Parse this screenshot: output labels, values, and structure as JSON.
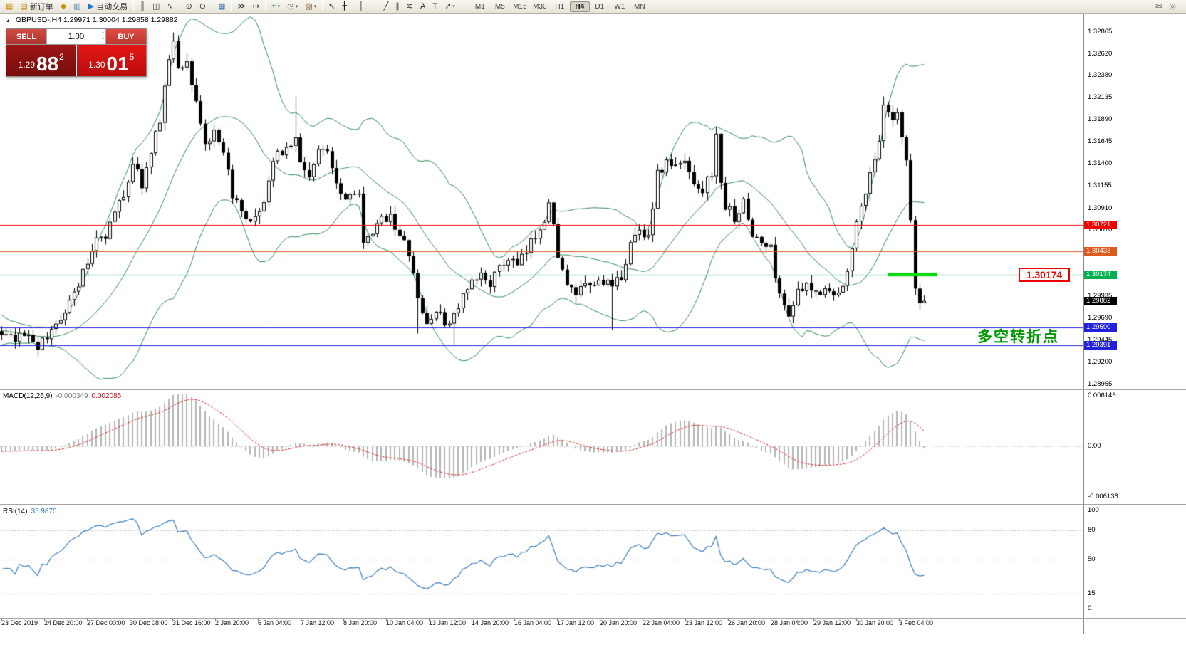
{
  "toolbar": {
    "buttons": [
      {
        "cls": "tb-btn",
        "name": "new-chart-button",
        "inter": "true",
        "glyph": "▦",
        "style": "color:#c79100"
      },
      {
        "cls": "tb-btn",
        "name": "new-order-button",
        "inter": "true",
        "glyph": "▤",
        "style": "color:#b8860b",
        "label": "新订单"
      },
      {
        "cls": "tb-btn",
        "name": "profiles-button",
        "inter": "true",
        "glyph": "◆",
        "style": "color:#c79100"
      },
      {
        "cls": "tb-btn",
        "name": "charts-button",
        "inter": "true",
        "glyph": "▥",
        "style": "color:#3b6fb5"
      },
      {
        "cls": "tb-btn",
        "name": "auto-trading-button",
        "inter": "true",
        "glyph": "▶",
        "style": "color:#1976d2",
        "label": "自动交易"
      },
      {
        "cls": "tb-sep",
        "name": "toolbar-separator",
        "inter": "false"
      },
      {
        "cls": "tb-btn",
        "name": "bars-chart-button",
        "inter": "true",
        "glyph": "║",
        "style": "color:#333"
      },
      {
        "cls": "tb-btn",
        "name": "candlestick-chart-button",
        "inter": "true",
        "glyph": "◫",
        "style": "color:#333"
      },
      {
        "cls": "tb-btn",
        "name": "line-chart-button",
        "inter": "true",
        "glyph": "∿",
        "style": "color:#333"
      },
      {
        "cls": "tb-sep",
        "name": "toolbar-separator",
        "inter": "false"
      },
      {
        "cls": "tb-btn",
        "name": "zoom-in-button",
        "inter": "true",
        "glyph": "⊕",
        "style": "color:#333"
      },
      {
        "cls": "tb-btn",
        "name": "zoom-out-button",
        "inter": "true",
        "glyph": "⊖",
        "style": "color:#333"
      },
      {
        "cls": "tb-sep",
        "name": "toolbar-separator",
        "inter": "false"
      },
      {
        "cls": "tb-btn",
        "name": "tile-windows-button",
        "inter": "true",
        "glyph": "▦",
        "style": "color:#3b6fb5"
      },
      {
        "cls": "tb-sep",
        "name": "toolbar-separator",
        "inter": "false"
      },
      {
        "cls": "tb-btn",
        "name": "auto-scroll-button",
        "inter": "true",
        "glyph": "≫",
        "style": "color:#333"
      },
      {
        "cls": "tb-btn",
        "name": "chart-shift-button",
        "inter": "true",
        "glyph": "↦",
        "style": "color:#333"
      },
      {
        "cls": "tb-sep",
        "name": "toolbar-separator",
        "inter": "false"
      },
      {
        "cls": "tb-btn",
        "name": "indicators-button",
        "inter": "true",
        "glyph": "+",
        "style": "color:#2e7d32;font-weight:bold",
        "caret": "▾"
      },
      {
        "cls": "tb-btn",
        "name": "periods-button",
        "inter": "true",
        "glyph": "◷",
        "style": "color:#333",
        "caret": "▾"
      },
      {
        "cls": "tb-btn",
        "name": "templates-button",
        "inter": "true",
        "glyph": "▧",
        "style": "color:#8a5a2b",
        "caret": "▾"
      },
      {
        "cls": "tb-sep",
        "name": "toolbar-separator",
        "inter": "false"
      },
      {
        "cls": "tb-btn",
        "name": "cursor-button",
        "inter": "true",
        "glyph": "↖",
        "style": "color:#222"
      },
      {
        "cls": "tb-btn",
        "name": "crosshair-button",
        "inter": "true",
        "glyph": "╋",
        "style": "color:#222"
      },
      {
        "cls": "tb-sep",
        "name": "toolbar-separator",
        "inter": "false"
      },
      {
        "cls": "tb-btn",
        "name": "vertical-line-button",
        "inter": "true",
        "glyph": "│",
        "style": "color:#222"
      },
      {
        "cls": "tb-btn",
        "name": "horizontal-line-button",
        "inter": "true",
        "glyph": "─",
        "style": "color:#222"
      },
      {
        "cls": "tb-btn",
        "name": "trendline-button",
        "inter": "true",
        "glyph": "╱",
        "style": "color:#222"
      },
      {
        "cls": "tb-btn",
        "name": "channel-button",
        "inter": "true",
        "glyph": "∥",
        "style": "color:#222"
      },
      {
        "cls": "tb-btn",
        "name": "fibonacci-button",
        "inter": "true",
        "glyph": "≋",
        "style": "color:#222"
      },
      {
        "cls": "tb-btn",
        "name": "text-button",
        "inter": "true",
        "glyph": "A",
        "style": "color:#222"
      },
      {
        "cls": "tb-btn",
        "name": "label-button",
        "inter": "true",
        "glyph": "T",
        "style": "color:#222"
      },
      {
        "cls": "tb-btn",
        "name": "arrows-button",
        "inter": "true",
        "glyph": "↗",
        "style": "color:#222",
        "caret": "▾"
      }
    ],
    "timeframes": [
      {
        "cls": "tf-btn",
        "name": "timeframe-m1",
        "inter": "true",
        "label": "M1"
      },
      {
        "cls": "tf-btn",
        "name": "timeframe-m5",
        "inter": "true",
        "label": "M5"
      },
      {
        "cls": "tf-btn",
        "name": "timeframe-m15",
        "inter": "true",
        "label": "M15"
      },
      {
        "cls": "tf-btn",
        "name": "timeframe-m30",
        "inter": "true",
        "label": "M30"
      },
      {
        "cls": "tf-btn",
        "name": "timeframe-h1",
        "inter": "true",
        "label": "H1"
      },
      {
        "cls": "tf-btn",
        "name": "timeframe-h4",
        "inter": "true",
        "label": "H4",
        "active": "true"
      },
      {
        "cls": "tf-btn",
        "name": "timeframe-d1",
        "inter": "true",
        "label": "D1"
      },
      {
        "cls": "tf-btn",
        "name": "timeframe-w1",
        "inter": "true",
        "label": "W1"
      },
      {
        "cls": "tf-btn",
        "name": "timeframe-mn",
        "inter": "true",
        "label": "MN"
      }
    ],
    "right_buttons": [
      {
        "cls": "tb-btn",
        "name": "chat-icon",
        "inter": "true",
        "glyph": "✉",
        "style": "color:#555"
      },
      {
        "cls": "tb-btn",
        "name": "notifications-icon",
        "inter": "true",
        "glyph": "◎",
        "style": "color:#555"
      }
    ]
  },
  "icons": {
    "spinner_up": "▴",
    "spinner_down": "▾",
    "symbol_collapse": "▲"
  },
  "trade_panel": {
    "sell_label": "SELL",
    "buy_label": "BUY",
    "volume": "1.00",
    "bid_head": "1.29",
    "bid_body": "88",
    "bid_sup": "2",
    "ask_head": "1.30",
    "ask_body": "01",
    "ask_sup": "5"
  },
  "chart": {
    "symbol_ohlc": "GBPUSD-,H4 1.29971 1.30004 1.29858 1.29882",
    "first_index": -24,
    "last_index": 204,
    "last_close": 1.29882,
    "bb": {
      "period": 20,
      "deviation": 2
    },
    "colors": {
      "bollinger": "#2e8b57",
      "bull": "#ffffff",
      "bear": "#000000",
      "outline": "#000000",
      "macd_histogram": "#b4b4b4",
      "macd_signal": "#d62020",
      "rsi_line": "#3a7bbf",
      "level_dotted": "#c0c0c0",
      "highlight_green": "#00d800",
      "annotation_green": "#009900",
      "current_price_bg": "#000000"
    },
    "scale_ticks": [
      "1.32865",
      "1.32620",
      "1.32380",
      "1.32135",
      "1.31890",
      "1.31645",
      "1.31400",
      "1.31155",
      "1.30910",
      "1.30670",
      "1.30425",
      "1.30180",
      "1.29935",
      "1.29690",
      "1.29445",
      "1.29200",
      "1.28955"
    ],
    "hlines": [
      {
        "price": 1.30721,
        "label": "1.30721",
        "color": "#f00000"
      },
      {
        "price": 1.30433,
        "label": "1.30433",
        "color": "#dd5a1e"
      },
      {
        "price": 1.30174,
        "label": "1.30174",
        "color": "#00b050"
      },
      {
        "price": 1.2959,
        "label": "1.29590",
        "color": "#2222dd"
      },
      {
        "price": 1.29391,
        "label": "1.29391",
        "color": "#2222dd"
      }
    ],
    "current_price": {
      "price": 1.29882,
      "label": "1.29882",
      "bg": "#000000"
    },
    "callout": {
      "text": "1.30174"
    },
    "annotation": {
      "text": "多空转折点"
    },
    "anchors": [
      [
        -24,
        1.298
      ],
      [
        -16,
        1.2966
      ],
      [
        -8,
        1.2952
      ],
      [
        0,
        1.295
      ],
      [
        3,
        1.2944
      ],
      [
        6,
        1.2952
      ],
      [
        8,
        1.2938
      ],
      [
        10,
        1.2946
      ],
      [
        13,
        1.2972
      ],
      [
        16,
        1.2996
      ],
      [
        19,
        1.303
      ],
      [
        21,
        1.306
      ],
      [
        23,
        1.3062
      ],
      [
        25,
        1.3086
      ],
      [
        27,
        1.3106
      ],
      [
        29,
        1.3142
      ],
      [
        31,
        1.3118
      ],
      [
        33,
        1.315
      ],
      [
        35,
        1.3192
      ],
      [
        37,
        1.3258
      ],
      [
        38,
        1.3272
      ],
      [
        39,
        1.3248
      ],
      [
        41,
        1.3252
      ],
      [
        43,
        1.321
      ],
      [
        45,
        1.3162
      ],
      [
        47,
        1.3172
      ],
      [
        49,
        1.3148
      ],
      [
        51,
        1.3108
      ],
      [
        53,
        1.3082
      ],
      [
        55,
        1.3072
      ],
      [
        57,
        1.3082
      ],
      [
        59,
        1.3122
      ],
      [
        61,
        1.3152
      ],
      [
        63,
        1.3158
      ],
      [
        65,
        1.3168
      ],
      [
        66,
        1.314
      ],
      [
        68,
        1.3128
      ],
      [
        70,
        1.3152
      ],
      [
        72,
        1.3158
      ],
      [
        74,
        1.3122
      ],
      [
        76,
        1.3102
      ],
      [
        78,
        1.3112
      ],
      [
        79,
        1.3108
      ],
      [
        80,
        1.3048
      ],
      [
        82,
        1.3062
      ],
      [
        84,
        1.3078
      ],
      [
        86,
        1.3086
      ],
      [
        88,
        1.3058
      ],
      [
        90,
        1.3042
      ],
      [
        92,
        1.2988
      ],
      [
        94,
        1.2962
      ],
      [
        96,
        1.2978
      ],
      [
        98,
        1.2962
      ],
      [
        100,
        1.2972
      ],
      [
        102,
        1.2992
      ],
      [
        104,
        1.3006
      ],
      [
        106,
        1.3016
      ],
      [
        108,
        1.301
      ],
      [
        110,
        1.3022
      ],
      [
        112,
        1.3036
      ],
      [
        114,
        1.3026
      ],
      [
        116,
        1.3042
      ],
      [
        118,
        1.3062
      ],
      [
        120,
        1.3082
      ],
      [
        121,
        1.3096
      ],
      [
        123,
        1.3042
      ],
      [
        125,
        1.3002
      ],
      [
        127,
        1.2996
      ],
      [
        129,
        1.3002
      ],
      [
        131,
        1.3006
      ],
      [
        133,
        1.3012
      ],
      [
        135,
        1.3
      ],
      [
        137,
        1.3016
      ],
      [
        139,
        1.3052
      ],
      [
        141,
        1.3066
      ],
      [
        143,
        1.3062
      ],
      [
        145,
        1.3128
      ],
      [
        147,
        1.3142
      ],
      [
        149,
        1.3136
      ],
      [
        151,
        1.3142
      ],
      [
        153,
        1.3122
      ],
      [
        155,
        1.3112
      ],
      [
        157,
        1.3132
      ],
      [
        158,
        1.3168
      ],
      [
        159,
        1.3122
      ],
      [
        160,
        1.3092
      ],
      [
        162,
        1.3082
      ],
      [
        164,
        1.3096
      ],
      [
        166,
        1.3062
      ],
      [
        168,
        1.3052
      ],
      [
        170,
        1.3046
      ],
      [
        172,
        1.2992
      ],
      [
        174,
        1.2976
      ],
      [
        176,
        1.2996
      ],
      [
        178,
        1.3002
      ],
      [
        180,
        1.2996
      ],
      [
        182,
        1.3006
      ],
      [
        184,
        1.2992
      ],
      [
        186,
        1.3002
      ],
      [
        188,
        1.3052
      ],
      [
        190,
        1.3092
      ],
      [
        192,
        1.3132
      ],
      [
        194,
        1.3162
      ],
      [
        195,
        1.3202
      ],
      [
        197,
        1.3186
      ],
      [
        198,
        1.3192
      ],
      [
        200,
        1.3142
      ],
      [
        201,
        1.3072
      ],
      [
        202,
        1.3002
      ],
      [
        203,
        1.2986
      ],
      [
        204,
        1.29882
      ]
    ],
    "wick_overrides": [
      [
        8,
        "l",
        1.2928
      ],
      [
        38,
        "h",
        1.3286
      ],
      [
        65,
        "h",
        1.3215
      ],
      [
        92,
        "l",
        1.2952
      ],
      [
        100,
        "l",
        1.2939
      ],
      [
        135,
        "l",
        1.2956
      ],
      [
        158,
        "h",
        1.3178
      ],
      [
        195,
        "h",
        1.3215
      ]
    ]
  },
  "macd": {
    "name": "MACD(12,26,9)",
    "value_main": "-0.000349",
    "value_signal": "0.002085",
    "fast": 12,
    "slow": 26,
    "signal": 9,
    "axis": [
      {
        "label": "0.006146",
        "value": 0.006146
      },
      {
        "label": "0.00",
        "value": 0
      },
      {
        "label": "-0.006138",
        "value": -0.006138
      }
    ]
  },
  "rsi": {
    "name": "RSI(14)",
    "value": "35.9870",
    "period": 14,
    "axis": [
      {
        "label": "100",
        "value": 100
      },
      {
        "label": "80",
        "value": 80
      },
      {
        "label": "50",
        "value": 50
      },
      {
        "label": "15",
        "value": 15
      },
      {
        "label": "0",
        "value": 0
      }
    ],
    "levels": [
      80,
      50,
      15
    ]
  },
  "time_axis": {
    "labels": [
      "23 Dec 2019",
      "24 Dec 20:00",
      "27 Dec 00:00",
      "30 Dec 08:00",
      "31 Dec 16:00",
      "2 Jan 20:00",
      "6 Jan 04:00",
      "7 Jan 12:00",
      "8 Jan 20:00",
      "10 Jan 04:00",
      "13 Jan 12:00",
      "14 Jan 20:00",
      "16 Jan 04:00",
      "17 Jan 12:00",
      "20 Jan 20:00",
      "22 Jan 04:00",
      "23 Jan 12:00",
      "26 Jan 20:00",
      "28 Jan 04:00",
      "29 Jan 12:00",
      "30 Jan 20:00",
      "3 Feb 04:00"
    ]
  }
}
